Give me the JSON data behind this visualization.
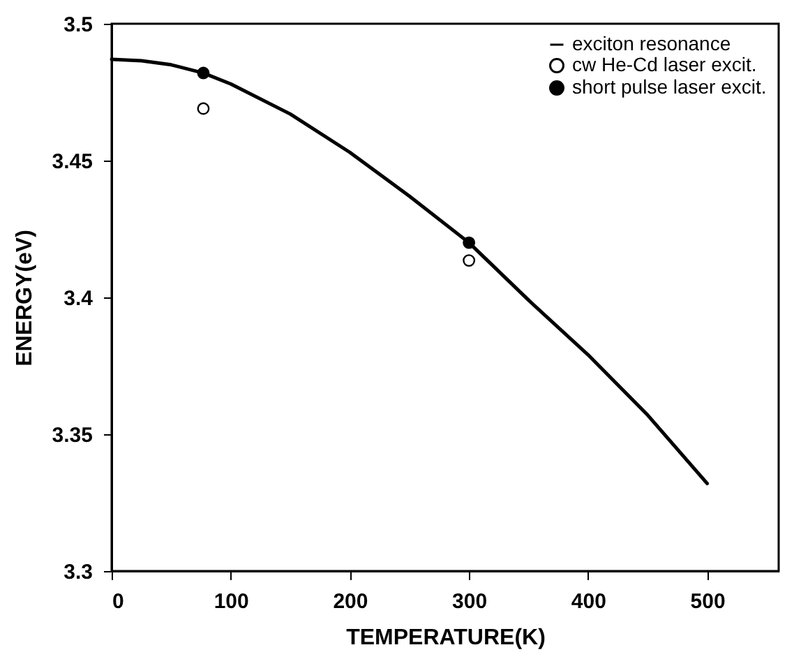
{
  "chart_data": {
    "type": "line",
    "xlabel": "TEMPERATURE(K)",
    "ylabel": "ENERGY(eV)",
    "xlim": [
      0,
      560
    ],
    "ylim": [
      3.3,
      3.5
    ],
    "xticks": [
      0,
      100,
      200,
      300,
      400,
      500
    ],
    "yticks": [
      3.3,
      3.35,
      3.4,
      3.45,
      3.5
    ],
    "grid": false,
    "legend": "top right",
    "series": [
      {
        "name": "exciton resonance",
        "color": "#000000",
        "line_style": "solid",
        "x": [
          0,
          25,
          50,
          77,
          100,
          150,
          200,
          250,
          300,
          350,
          400,
          450,
          500
        ],
        "values": [
          3.487,
          3.4865,
          3.485,
          3.482,
          3.478,
          3.467,
          3.453,
          3.437,
          3.42,
          3.399,
          3.379,
          3.357,
          3.332
        ]
      },
      {
        "name": "cw He-Cd laser excit.",
        "type": "scatter",
        "marker": "circle",
        "color": "#ffffff",
        "x": [
          77,
          300
        ],
        "values": [
          3.469,
          3.4135
        ]
      },
      {
        "name": "short pulse laser excit.",
        "type": "scatter",
        "marker": "circle",
        "color": "#000000",
        "x": [
          77,
          300
        ],
        "values": [
          3.482,
          3.42
        ]
      }
    ]
  }
}
